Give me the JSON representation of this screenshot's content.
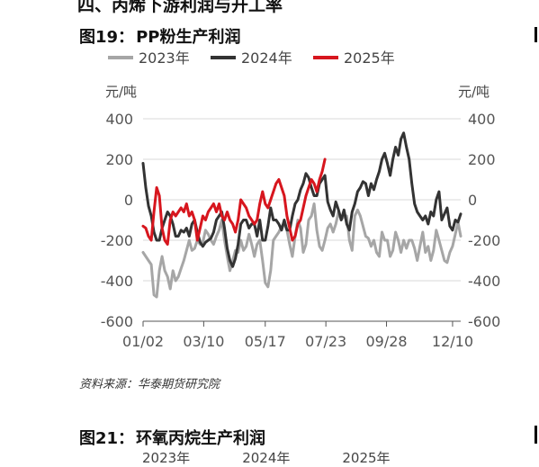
{
  "section_heading": "四、丙烯下游利润与开工率",
  "figure1": {
    "number": "图19：",
    "title": "PP粉生产利润"
  },
  "chart_data": {
    "type": "line",
    "unit_left": "元/吨",
    "unit_right": "元/吨",
    "ylim": [
      -600,
      400
    ],
    "yticks": [
      400,
      200,
      0,
      -200,
      -400,
      -600
    ],
    "xlim": [
      0,
      351
    ],
    "x_tick_labels": [
      "01/02",
      "03/10",
      "05/17",
      "07/23",
      "09/28",
      "12/10"
    ],
    "x_tick_days": [
      0,
      67,
      135,
      202,
      269,
      342
    ],
    "series": [
      {
        "name": "2023年",
        "color": "#a6a6a6",
        "points": [
          [
            0,
            -260
          ],
          [
            3,
            -280
          ],
          [
            6,
            -300
          ],
          [
            9,
            -320
          ],
          [
            12,
            -470
          ],
          [
            15,
            -480
          ],
          [
            18,
            -350
          ],
          [
            21,
            -280
          ],
          [
            24,
            -350
          ],
          [
            27,
            -380
          ],
          [
            30,
            -440
          ],
          [
            33,
            -350
          ],
          [
            36,
            -400
          ],
          [
            39,
            -380
          ],
          [
            42,
            -340
          ],
          [
            45,
            -300
          ],
          [
            48,
            -250
          ],
          [
            51,
            -200
          ],
          [
            54,
            -250
          ],
          [
            57,
            -240
          ],
          [
            60,
            -200
          ],
          [
            63,
            -220
          ],
          [
            66,
            -210
          ],
          [
            69,
            -150
          ],
          [
            72,
            -170
          ],
          [
            75,
            -200
          ],
          [
            78,
            -220
          ],
          [
            81,
            -180
          ],
          [
            84,
            -150
          ],
          [
            87,
            -100
          ],
          [
            90,
            -200
          ],
          [
            93,
            -280
          ],
          [
            96,
            -350
          ],
          [
            99,
            -300
          ],
          [
            102,
            -250
          ],
          [
            105,
            -260
          ],
          [
            108,
            -200
          ],
          [
            111,
            -250
          ],
          [
            114,
            -230
          ],
          [
            117,
            -170
          ],
          [
            120,
            -220
          ],
          [
            123,
            -280
          ],
          [
            126,
            -220
          ],
          [
            129,
            -200
          ],
          [
            132,
            -300
          ],
          [
            135,
            -410
          ],
          [
            138,
            -430
          ],
          [
            141,
            -350
          ],
          [
            144,
            -200
          ],
          [
            147,
            -180
          ],
          [
            150,
            -160
          ],
          [
            153,
            -130
          ],
          [
            156,
            -120
          ],
          [
            159,
            -150
          ],
          [
            162,
            -220
          ],
          [
            165,
            -280
          ],
          [
            168,
            -180
          ],
          [
            171,
            -100
          ],
          [
            174,
            -140
          ],
          [
            177,
            -260
          ],
          [
            180,
            -220
          ],
          [
            183,
            -100
          ],
          [
            186,
            -80
          ],
          [
            189,
            -20
          ],
          [
            192,
            -150
          ],
          [
            195,
            -230
          ],
          [
            198,
            -250
          ],
          [
            201,
            -200
          ],
          [
            204,
            -140
          ],
          [
            207,
            -120
          ],
          [
            210,
            -160
          ],
          [
            213,
            -120
          ],
          [
            216,
            -60
          ],
          [
            219,
            -100
          ],
          [
            222,
            -80
          ],
          [
            225,
            -80
          ],
          [
            228,
            -200
          ],
          [
            231,
            -250
          ],
          [
            234,
            -80
          ],
          [
            237,
            -50
          ],
          [
            240,
            -80
          ],
          [
            243,
            -130
          ],
          [
            246,
            -180
          ],
          [
            249,
            -190
          ],
          [
            252,
            -230
          ],
          [
            255,
            -200
          ],
          [
            258,
            -260
          ],
          [
            261,
            -280
          ],
          [
            264,
            -160
          ],
          [
            267,
            -200
          ],
          [
            270,
            -200
          ],
          [
            273,
            -280
          ],
          [
            276,
            -250
          ],
          [
            279,
            -160
          ],
          [
            282,
            -200
          ],
          [
            285,
            -260
          ],
          [
            288,
            -200
          ],
          [
            291,
            -240
          ],
          [
            294,
            -200
          ],
          [
            297,
            -200
          ],
          [
            300,
            -240
          ],
          [
            303,
            -300
          ],
          [
            306,
            -230
          ],
          [
            309,
            -160
          ],
          [
            312,
            -260
          ],
          [
            315,
            -230
          ],
          [
            318,
            -300
          ],
          [
            321,
            -250
          ],
          [
            324,
            -150
          ],
          [
            327,
            -200
          ],
          [
            330,
            -250
          ],
          [
            333,
            -300
          ],
          [
            336,
            -310
          ],
          [
            339,
            -260
          ],
          [
            342,
            -230
          ],
          [
            345,
            -170
          ],
          [
            348,
            -110
          ],
          [
            351,
            -180
          ]
        ]
      },
      {
        "name": "2024年",
        "color": "#333333",
        "points": [
          [
            0,
            180
          ],
          [
            3,
            60
          ],
          [
            6,
            -30
          ],
          [
            9,
            -80
          ],
          [
            12,
            -160
          ],
          [
            15,
            -200
          ],
          [
            18,
            -200
          ],
          [
            21,
            -140
          ],
          [
            24,
            -100
          ],
          [
            27,
            -60
          ],
          [
            30,
            -80
          ],
          [
            33,
            -120
          ],
          [
            36,
            -180
          ],
          [
            39,
            -180
          ],
          [
            42,
            -150
          ],
          [
            45,
            -160
          ],
          [
            48,
            -140
          ],
          [
            51,
            -180
          ],
          [
            54,
            -120
          ],
          [
            57,
            -100
          ],
          [
            60,
            -160
          ],
          [
            63,
            -210
          ],
          [
            66,
            -230
          ],
          [
            69,
            -210
          ],
          [
            72,
            -200
          ],
          [
            75,
            -190
          ],
          [
            78,
            -160
          ],
          [
            81,
            -100
          ],
          [
            84,
            -80
          ],
          [
            87,
            -60
          ],
          [
            90,
            -140
          ],
          [
            93,
            -240
          ],
          [
            96,
            -300
          ],
          [
            99,
            -330
          ],
          [
            102,
            -290
          ],
          [
            105,
            -220
          ],
          [
            108,
            -120
          ],
          [
            111,
            -100
          ],
          [
            114,
            -100
          ],
          [
            117,
            -140
          ],
          [
            120,
            -120
          ],
          [
            123,
            -120
          ],
          [
            126,
            -180
          ],
          [
            129,
            -100
          ],
          [
            132,
            -200
          ],
          [
            135,
            -200
          ],
          [
            138,
            -130
          ],
          [
            141,
            -40
          ],
          [
            144,
            -100
          ],
          [
            147,
            -100
          ],
          [
            150,
            -120
          ],
          [
            153,
            -150
          ],
          [
            156,
            -100
          ],
          [
            159,
            -150
          ],
          [
            162,
            -150
          ],
          [
            165,
            -80
          ],
          [
            168,
            -20
          ],
          [
            171,
            0
          ],
          [
            174,
            50
          ],
          [
            177,
            80
          ],
          [
            180,
            130
          ],
          [
            183,
            110
          ],
          [
            186,
            60
          ],
          [
            189,
            20
          ],
          [
            192,
            20
          ],
          [
            195,
            80
          ],
          [
            198,
            100
          ],
          [
            201,
            120
          ],
          [
            204,
            -10
          ],
          [
            207,
            -50
          ],
          [
            210,
            -80
          ],
          [
            213,
            -10
          ],
          [
            216,
            -50
          ],
          [
            219,
            -100
          ],
          [
            222,
            -50
          ],
          [
            225,
            -120
          ],
          [
            228,
            -150
          ],
          [
            231,
            -60
          ],
          [
            234,
            -20
          ],
          [
            237,
            40
          ],
          [
            240,
            60
          ],
          [
            243,
            90
          ],
          [
            246,
            80
          ],
          [
            249,
            20
          ],
          [
            252,
            80
          ],
          [
            255,
            50
          ],
          [
            258,
            100
          ],
          [
            261,
            140
          ],
          [
            264,
            200
          ],
          [
            267,
            230
          ],
          [
            270,
            180
          ],
          [
            273,
            120
          ],
          [
            276,
            200
          ],
          [
            279,
            260
          ],
          [
            282,
            220
          ],
          [
            285,
            300
          ],
          [
            288,
            330
          ],
          [
            291,
            260
          ],
          [
            294,
            200
          ],
          [
            297,
            80
          ],
          [
            300,
            -20
          ],
          [
            303,
            -60
          ],
          [
            306,
            -80
          ],
          [
            309,
            -100
          ],
          [
            312,
            -80
          ],
          [
            315,
            -120
          ],
          [
            318,
            -60
          ],
          [
            321,
            -80
          ],
          [
            324,
            0
          ],
          [
            327,
            40
          ],
          [
            330,
            -100
          ],
          [
            333,
            -70
          ],
          [
            336,
            -40
          ],
          [
            339,
            -130
          ],
          [
            342,
            -150
          ],
          [
            345,
            -100
          ],
          [
            348,
            -110
          ],
          [
            351,
            -70
          ]
        ]
      },
      {
        "name": "2025年",
        "color": "#d7161e",
        "points": [
          [
            0,
            -130
          ],
          [
            3,
            -140
          ],
          [
            6,
            -180
          ],
          [
            9,
            -200
          ],
          [
            12,
            -60
          ],
          [
            15,
            60
          ],
          [
            18,
            20
          ],
          [
            21,
            -140
          ],
          [
            24,
            -200
          ],
          [
            27,
            -220
          ],
          [
            30,
            -100
          ],
          [
            33,
            -60
          ],
          [
            36,
            -80
          ],
          [
            39,
            -60
          ],
          [
            42,
            -40
          ],
          [
            45,
            -60
          ],
          [
            48,
            -20
          ],
          [
            51,
            -80
          ],
          [
            54,
            -60
          ],
          [
            57,
            -100
          ],
          [
            60,
            -200
          ],
          [
            63,
            -140
          ],
          [
            66,
            -80
          ],
          [
            69,
            -100
          ],
          [
            72,
            -60
          ],
          [
            75,
            -40
          ],
          [
            78,
            -20
          ],
          [
            81,
            -60
          ],
          [
            84,
            -20
          ],
          [
            87,
            -80
          ],
          [
            90,
            -100
          ],
          [
            93,
            -60
          ],
          [
            96,
            -100
          ],
          [
            99,
            -120
          ],
          [
            102,
            -160
          ],
          [
            105,
            -100
          ],
          [
            108,
            0
          ],
          [
            111,
            -20
          ],
          [
            114,
            -40
          ],
          [
            117,
            -80
          ],
          [
            120,
            -100
          ],
          [
            123,
            -120
          ],
          [
            126,
            -100
          ],
          [
            129,
            -20
          ],
          [
            132,
            40
          ],
          [
            135,
            -20
          ],
          [
            138,
            -40
          ],
          [
            141,
            0
          ],
          [
            144,
            40
          ],
          [
            147,
            80
          ],
          [
            150,
            100
          ],
          [
            153,
            60
          ],
          [
            156,
            20
          ],
          [
            159,
            -80
          ],
          [
            162,
            -140
          ],
          [
            165,
            -200
          ],
          [
            168,
            -180
          ],
          [
            171,
            -120
          ],
          [
            174,
            -100
          ],
          [
            177,
            -40
          ],
          [
            180,
            20
          ],
          [
            183,
            60
          ],
          [
            186,
            100
          ],
          [
            189,
            80
          ],
          [
            192,
            40
          ],
          [
            195,
            100
          ],
          [
            198,
            140
          ],
          [
            201,
            200
          ]
        ]
      }
    ]
  },
  "source": "资料来源：华泰期货研究院",
  "figure2": {
    "number": "图21：",
    "title": "环氧丙烷生产利润"
  },
  "legend2": [
    "2023年",
    "2024年",
    "2025年"
  ]
}
